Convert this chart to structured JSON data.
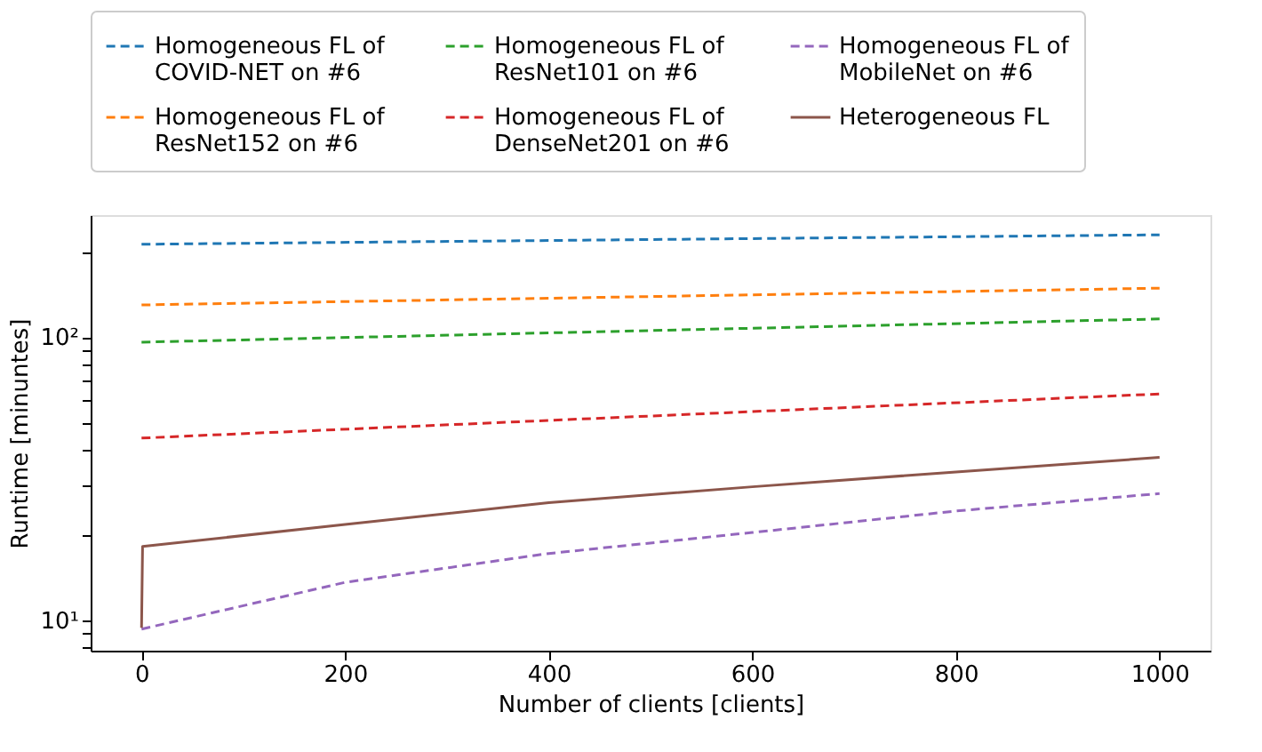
{
  "chart_data": {
    "type": "line",
    "xlabel": "Number of clients [clients]",
    "ylabel": "Runtime [minuntes]",
    "log": "y",
    "grid": false,
    "legend": "top",
    "marker": "none",
    "xlim": [
      -50,
      1050
    ],
    "xticks": [
      0,
      200,
      400,
      600,
      800,
      1000
    ],
    "ylim": [
      7.8,
      270
    ],
    "yticks": [
      {
        "value": 8,
        "label": null
      },
      {
        "value": 9,
        "label": null
      },
      {
        "value": 10,
        "label": "10¹"
      },
      {
        "value": 20,
        "label": null
      },
      {
        "value": 30,
        "label": null
      },
      {
        "value": 40,
        "label": null
      },
      {
        "value": 50,
        "label": null
      },
      {
        "value": 60,
        "label": null
      },
      {
        "value": 70,
        "label": null
      },
      {
        "value": 80,
        "label": null
      },
      {
        "value": 90,
        "label": null
      },
      {
        "value": 100,
        "label": "10²"
      },
      {
        "value": 200,
        "label": null
      }
    ],
    "series": [
      {
        "name": "Homogeneous FL of COVID-NET on #6",
        "color": "#1f77b4",
        "line_style": "dashed",
        "x": [
          0,
          1000
        ],
        "values": [
          213,
          230
        ]
      },
      {
        "name": "Homogeneous FL of ResNet152 on #6",
        "color": "#ff7f0e",
        "line_style": "dashed",
        "x": [
          0,
          1000
        ],
        "values": [
          130,
          149
        ]
      },
      {
        "name": "Homogeneous FL of ResNet101 on #6",
        "color": "#2ca02c",
        "line_style": "dashed",
        "x": [
          0,
          1000
        ],
        "values": [
          96,
          116
        ]
      },
      {
        "name": "Homogeneous FL of DenseNet201 on #6",
        "color": "#d62728",
        "line_style": "dashed",
        "x": [
          0,
          1000
        ],
        "values": [
          44,
          63
        ]
      },
      {
        "name": "Homogeneous FL of MobileNet on #6",
        "color": "#9467bd",
        "line_style": "dashed",
        "x": [
          0,
          200,
          400,
          600,
          800,
          1000
        ],
        "values": [
          9.3,
          13.6,
          17.2,
          20.4,
          24.3,
          28
        ]
      },
      {
        "name": "Heterogeneous FL",
        "color": "#8c564b",
        "line_style": "solid",
        "x": [
          0,
          1,
          200,
          400,
          600,
          800,
          1000
        ],
        "values": [
          9.4,
          18.2,
          21.8,
          26,
          29.6,
          33.4,
          37.6
        ]
      }
    ]
  }
}
